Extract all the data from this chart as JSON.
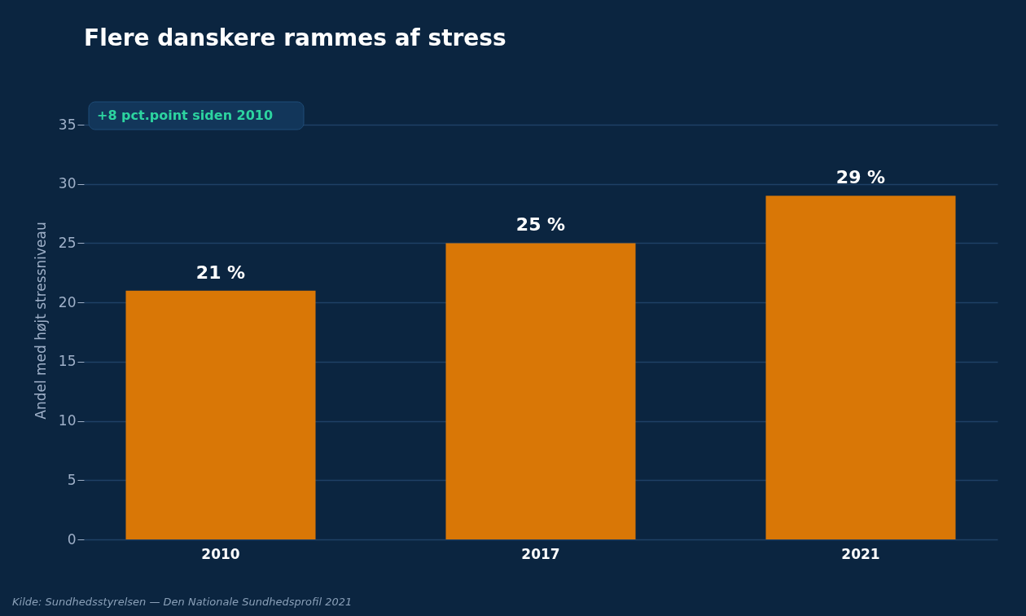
{
  "chart_data": {
    "type": "bar",
    "title": "Flere danskere rammes af stress",
    "ylabel": "Andel med højt stressniveau",
    "categories": [
      "2010",
      "2017",
      "2021"
    ],
    "values": [
      21,
      25,
      29
    ],
    "value_labels": [
      "21 %",
      "25 %",
      "29 %"
    ],
    "color": "#d97706",
    "ylim": [
      0,
      37
    ],
    "yticks": [
      0,
      5,
      10,
      15,
      20,
      25,
      30,
      35
    ],
    "grid": "y",
    "annotations": [
      "+8 pct.point siden 2010",
      "Kilde: Sundhedsstyrelsen — Den Nationale Sundhedsprofil 2021"
    ]
  }
}
